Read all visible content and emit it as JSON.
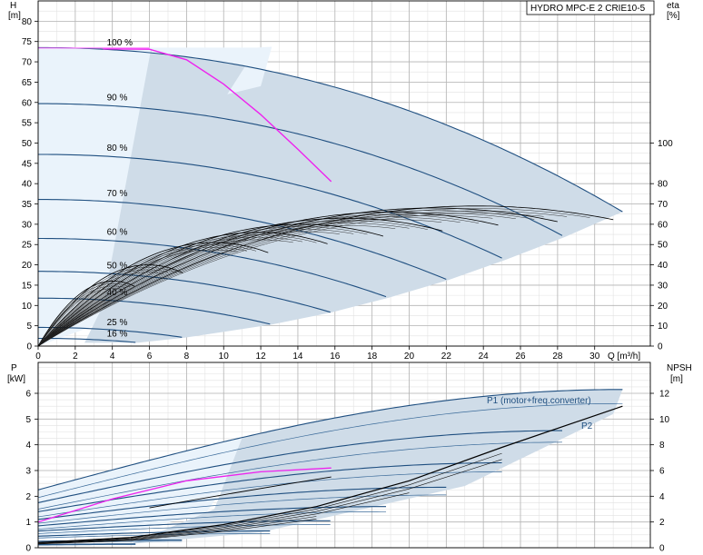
{
  "title_box": "HYDRO MPC-E 2 CRIE10-5",
  "chart_data": [
    {
      "type": "line",
      "panel": "head-efficiency",
      "xlabel": "Q [m³/h]",
      "ylabel_left": "H",
      "ylabel_left_unit": "[m]",
      "ylabel_right": "eta",
      "ylabel_right_unit": "[%]",
      "xlim": [
        0,
        33
      ],
      "ylim_left": [
        0,
        85
      ],
      "ylim_right": [
        0,
        170
      ],
      "x_ticks": [
        0,
        2,
        4,
        6,
        8,
        10,
        12,
        14,
        16,
        18,
        20,
        22,
        24,
        26,
        28,
        30
      ],
      "y_ticks_left": [
        0,
        5,
        10,
        15,
        20,
        25,
        30,
        35,
        40,
        45,
        50,
        55,
        60,
        65,
        70,
        75,
        80
      ],
      "y_ticks_right": [
        0,
        10,
        20,
        30,
        40,
        50,
        60,
        70,
        80,
        100
      ],
      "grid": true,
      "colors": {
        "curve": "#1f4f80",
        "duty": "#ee22ee",
        "efficiency": "#000000",
        "region": "#cfdce8",
        "region_light": "#eaf3fb"
      },
      "speed_curves": [
        {
          "label": "100 %",
          "qmax": 31.5,
          "h0": 73.5,
          "label_x": 3.8,
          "label_y": 74.5
        },
        {
          "label": "90 %",
          "qmax": 28.4,
          "h0": 59.7,
          "label_x": 3.8,
          "label_y": 60.9
        },
        {
          "label": "80 %",
          "qmax": 25.2,
          "h0": 47.2,
          "label_x": 3.8,
          "label_y": 48.5
        },
        {
          "label": "70 %",
          "qmax": 22.1,
          "h0": 36.1,
          "label_x": 3.8,
          "label_y": 37.3
        },
        {
          "label": "60 %",
          "qmax": 18.9,
          "h0": 26.5,
          "label_x": 3.8,
          "label_y": 27.8
        },
        {
          "label": "50 %",
          "qmax": 15.8,
          "h0": 18.4,
          "label_x": 3.8,
          "label_y": 19.6
        },
        {
          "label": "40 %",
          "qmax": 12.6,
          "h0": 11.8,
          "label_x": 3.8,
          "label_y": 13.0
        },
        {
          "label": "25 %",
          "qmax": 7.9,
          "h0": 4.6,
          "label_x": 3.8,
          "label_y": 5.6
        },
        {
          "label": "16 %",
          "qmax": 5.4,
          "h0": 1.9,
          "label_x": 3.8,
          "label_y": 2.8
        }
      ],
      "duty_curve": [
        [
          3.5,
          73.2
        ],
        [
          6,
          73.1
        ],
        [
          8,
          70.5
        ],
        [
          10,
          64.5
        ],
        [
          12,
          57
        ],
        [
          14,
          48.5
        ],
        [
          15.8,
          40.5
        ]
      ],
      "efficiency_curves": [
        {
          "qmax": 31.5,
          "peak": 34.5
        },
        {
          "qmax": 28.4,
          "peak": 34.0
        },
        {
          "qmax": 25.2,
          "peak": 33.0
        },
        {
          "qmax": 22.1,
          "peak": 31.5
        },
        {
          "qmax": 18.9,
          "peak": 30.0
        },
        {
          "qmax": 15.8,
          "peak": 28.0
        },
        {
          "qmax": 12.6,
          "peak": 25.5
        },
        {
          "qmax": 7.9,
          "peak": 20.0
        },
        {
          "qmax": 5.4,
          "peak": 16.0
        }
      ]
    },
    {
      "type": "line",
      "panel": "power-npsh",
      "xlabel": "",
      "ylabel_left": "P",
      "ylabel_left_unit": "[kW]",
      "ylabel_right": "NPSH",
      "ylabel_right_unit": "[m]",
      "xlim": [
        0,
        33
      ],
      "ylim_left": [
        0,
        7.2
      ],
      "ylim_right": [
        0,
        14.4
      ],
      "y_ticks_left": [
        0,
        1,
        2,
        3,
        4,
        5,
        6
      ],
      "y_ticks_right": [
        0,
        2,
        4,
        6,
        8,
        10,
        12
      ],
      "grid": true,
      "series_labels": [
        "P1 (motor+freq.converter)",
        "P2"
      ],
      "power_curves_p1": [
        {
          "qmax": 31.5,
          "p0": 2.25,
          "p1": 6.15
        },
        {
          "qmax": 28.4,
          "p0": 1.75,
          "p1": 4.55
        },
        {
          "qmax": 25.2,
          "p0": 1.4,
          "p1": 3.3
        },
        {
          "qmax": 22.1,
          "p0": 1.1,
          "p1": 2.35
        },
        {
          "qmax": 18.9,
          "p0": 0.85,
          "p1": 1.6
        },
        {
          "qmax": 15.8,
          "p0": 0.65,
          "p1": 1.05
        },
        {
          "qmax": 12.6,
          "p0": 0.45,
          "p1": 0.65
        },
        {
          "qmax": 7.9,
          "p0": 0.25,
          "p1": 0.3
        },
        {
          "qmax": 5.4,
          "p0": 0.12,
          "p1": 0.15
        }
      ],
      "power_curves_p2": [
        {
          "qmax": 31.5,
          "p0": 1.95,
          "p1": 5.6
        },
        {
          "qmax": 28.4,
          "p0": 1.5,
          "p1": 4.1
        },
        {
          "qmax": 25.2,
          "p0": 1.2,
          "p1": 2.95
        },
        {
          "qmax": 22.1,
          "p0": 0.95,
          "p1": 2.05
        },
        {
          "qmax": 18.9,
          "p0": 0.72,
          "p1": 1.4
        },
        {
          "qmax": 15.8,
          "p0": 0.55,
          "p1": 0.9
        },
        {
          "qmax": 12.6,
          "p0": 0.38,
          "p1": 0.55
        },
        {
          "qmax": 7.9,
          "p0": 0.2,
          "p1": 0.25
        },
        {
          "qmax": 5.4,
          "p0": 0.1,
          "p1": 0.12
        }
      ],
      "duty_power": [
        [
          0,
          1.0
        ],
        [
          4,
          1.9
        ],
        [
          8,
          2.6
        ],
        [
          12,
          2.95
        ],
        [
          15.8,
          3.1
        ]
      ],
      "npsh_curve": [
        [
          0,
          0.2
        ],
        [
          5,
          0.4
        ],
        [
          10,
          0.9
        ],
        [
          15,
          1.6
        ],
        [
          20,
          2.6
        ],
        [
          25,
          3.9
        ],
        [
          31.5,
          5.5
        ]
      ]
    }
  ]
}
